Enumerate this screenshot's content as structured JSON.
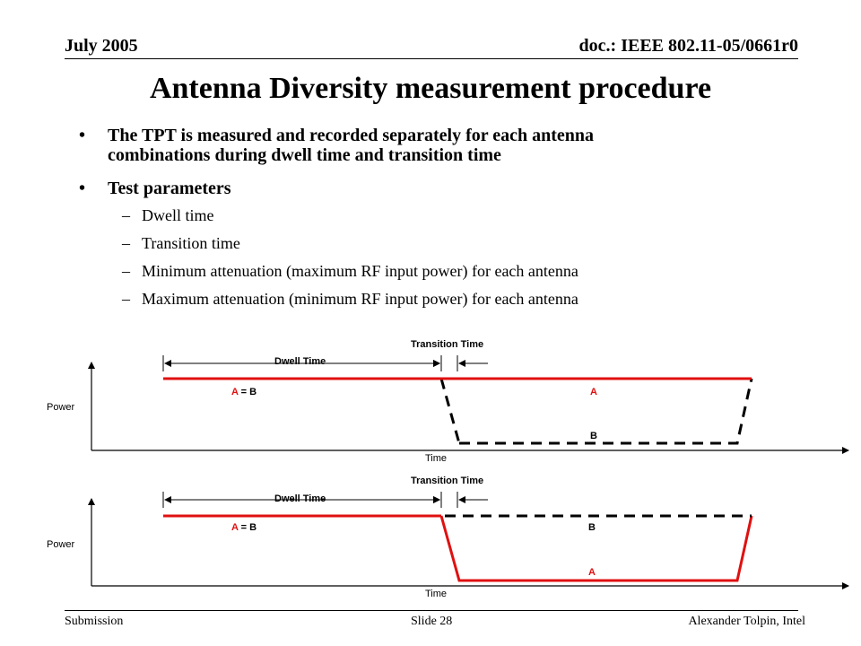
{
  "header": {
    "date": "July 2005",
    "doc": "doc.: IEEE 802.11-05/0661r0"
  },
  "title": "Antenna Diversity measurement procedure",
  "bullets": [
    {
      "text": "The TPT is measured and recorded separately for each antenna combinations during dwell time and transition time",
      "line1": "The TPT is measured and recorded separately for each antenna",
      "line2": "combinations during dwell time and transition time"
    },
    {
      "text": "Test parameters",
      "subitems": [
        "Dwell time",
        "Transition time",
        "Minimum attenuation (maximum RF input power) for each antenna",
        "Maximum attenuation (minimum RF input power) for each antenna"
      ]
    }
  ],
  "diagrams": [
    {
      "transition_label": "Transition Time",
      "dwell_label": "Dwell Time",
      "y_label": "Power",
      "x_label": "Time",
      "label_ab_prefix": "A",
      "label_ab_eq": " = ",
      "label_ab_suffix": "B",
      "label_upper": "A",
      "label_lower": "B",
      "upper_line": "A",
      "lower_line": "B"
    },
    {
      "transition_label": "Transition Time",
      "dwell_label": "Dwell Time",
      "y_label": "Power",
      "x_label": "Time",
      "label_ab_prefix": "A",
      "label_ab_eq": " = ",
      "label_ab_suffix": "B",
      "label_upper": "B",
      "label_lower": "A",
      "upper_line": "B",
      "lower_line": "A"
    }
  ],
  "colors": {
    "antenna_a_line": "#e01010",
    "antenna_b_line": "#000000"
  },
  "footer": {
    "left": "Submission",
    "center": "Slide 28",
    "right": "Alexander Tolpin, Intel"
  }
}
